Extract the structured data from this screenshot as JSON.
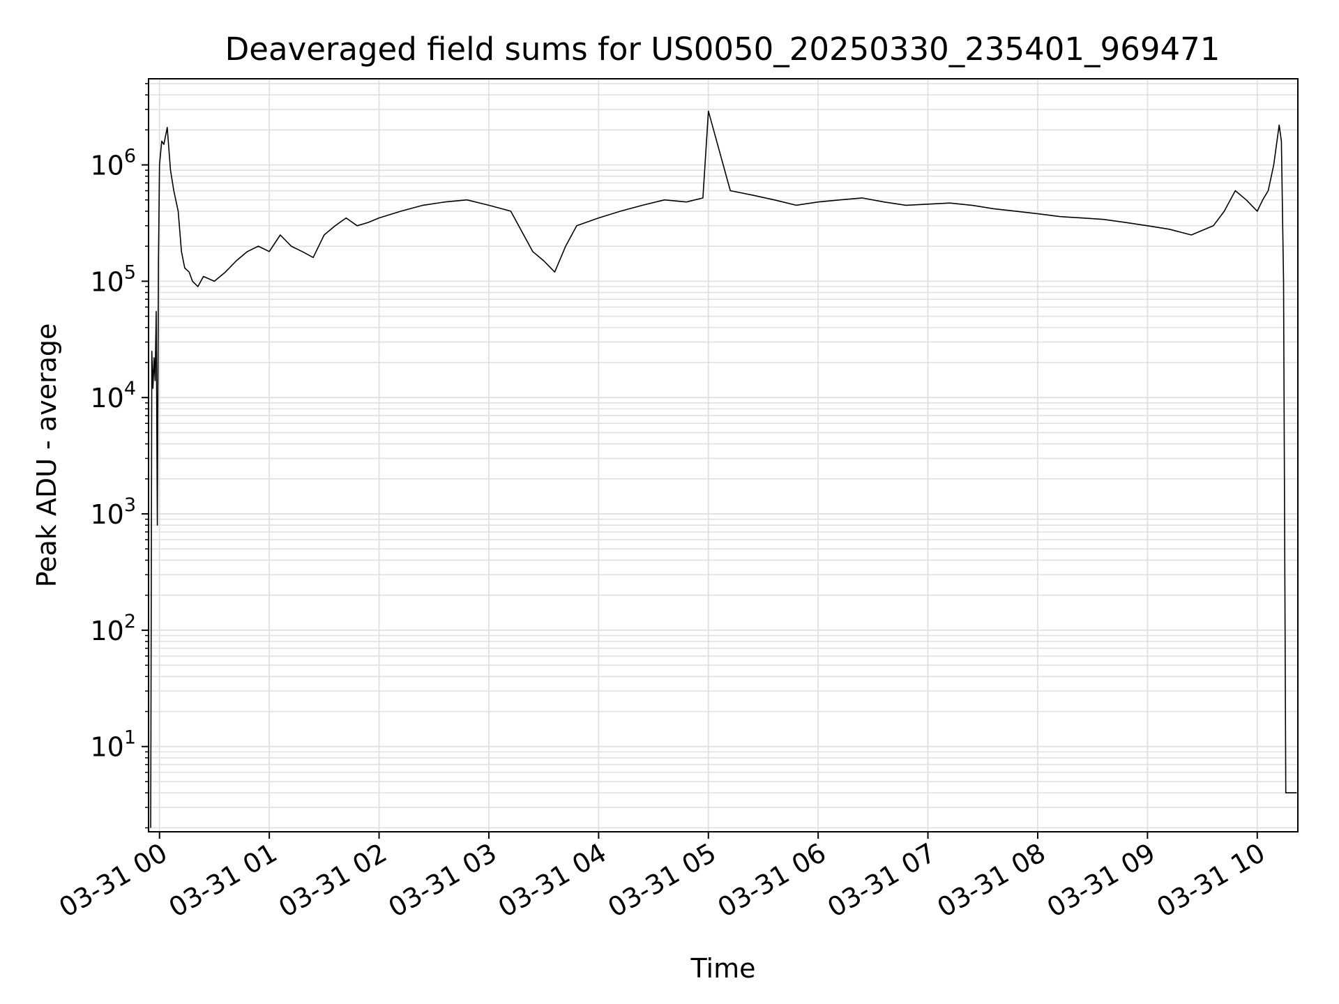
{
  "chart_data": {
    "type": "line",
    "title": "Deaveraged field sums for US0050_20250330_235401_969471",
    "xlabel": "Time",
    "ylabel": "Peak ADU - average",
    "x_tick_labels": [
      "03-31 00",
      "03-31 01",
      "03-31 02",
      "03-31 03",
      "03-31 04",
      "03-31 05",
      "03-31 06",
      "03-31 07",
      "03-31 08",
      "03-31 09",
      "03-31 10"
    ],
    "x_ticks_hours": [
      0,
      1,
      2,
      3,
      4,
      5,
      6,
      7,
      8,
      9,
      10
    ],
    "xlim_hours": [
      -0.1,
      10.37
    ],
    "yscale": "log",
    "ylim": [
      1.85,
      5500000
    ],
    "y_ticks": [
      {
        "base": "10",
        "exp": "1",
        "value": 10
      },
      {
        "base": "10",
        "exp": "2",
        "value": 100
      },
      {
        "base": "10",
        "exp": "3",
        "value": 1000
      },
      {
        "base": "10",
        "exp": "4",
        "value": 10000
      },
      {
        "base": "10",
        "exp": "5",
        "value": 100000
      },
      {
        "base": "10",
        "exp": "6",
        "value": 1000000
      }
    ],
    "grid": true,
    "line_color": "#000000",
    "grid_color": "#e0e0e0",
    "series": [
      {
        "x_hours": [
          -0.08,
          -0.07,
          -0.06,
          -0.05,
          -0.04,
          -0.03,
          -0.02,
          -0.01,
          0.0,
          0.02,
          0.04,
          0.07,
          0.1,
          0.13,
          0.17,
          0.2,
          0.23,
          0.27,
          0.3,
          0.35,
          0.4,
          0.5,
          0.6,
          0.7,
          0.8,
          0.9,
          1.0,
          1.1,
          1.2,
          1.3,
          1.4,
          1.5,
          1.6,
          1.7,
          1.8,
          1.9,
          2.0,
          2.2,
          2.4,
          2.6,
          2.8,
          3.0,
          3.2,
          3.4,
          3.5,
          3.6,
          3.7,
          3.8,
          4.0,
          4.2,
          4.4,
          4.6,
          4.8,
          4.95,
          5.0,
          5.2,
          5.4,
          5.6,
          5.8,
          6.0,
          6.2,
          6.4,
          6.6,
          6.8,
          7.0,
          7.2,
          7.4,
          7.6,
          7.8,
          8.0,
          8.2,
          8.4,
          8.6,
          8.8,
          9.0,
          9.2,
          9.4,
          9.6,
          9.7,
          9.8,
          9.9,
          10.0,
          10.05,
          10.1,
          10.15,
          10.2,
          10.22,
          10.24,
          10.26,
          10.27,
          10.28,
          10.3,
          10.33,
          10.36
        ],
        "values": [
          2,
          25000,
          12000,
          22000,
          14000,
          55000,
          800,
          150000,
          1000000,
          1600000,
          1500000,
          2100000,
          900000,
          600000,
          400000,
          180000,
          130000,
          120000,
          100000,
          90000,
          110000,
          100000,
          120000,
          150000,
          180000,
          200000,
          180000,
          250000,
          200000,
          180000,
          160000,
          250000,
          300000,
          350000,
          300000,
          320000,
          350000,
          400000,
          450000,
          480000,
          500000,
          450000,
          400000,
          180000,
          150000,
          120000,
          200000,
          300000,
          350000,
          400000,
          450000,
          500000,
          480000,
          520000,
          2900000,
          600000,
          550000,
          500000,
          450000,
          480000,
          500000,
          520000,
          480000,
          450000,
          460000,
          470000,
          450000,
          420000,
          400000,
          380000,
          360000,
          350000,
          340000,
          320000,
          300000,
          280000,
          250000,
          300000,
          400000,
          600000,
          500000,
          400000,
          500000,
          600000,
          1000000,
          2200000,
          1600000,
          100000,
          4,
          4,
          4,
          4,
          4,
          4
        ]
      }
    ]
  }
}
